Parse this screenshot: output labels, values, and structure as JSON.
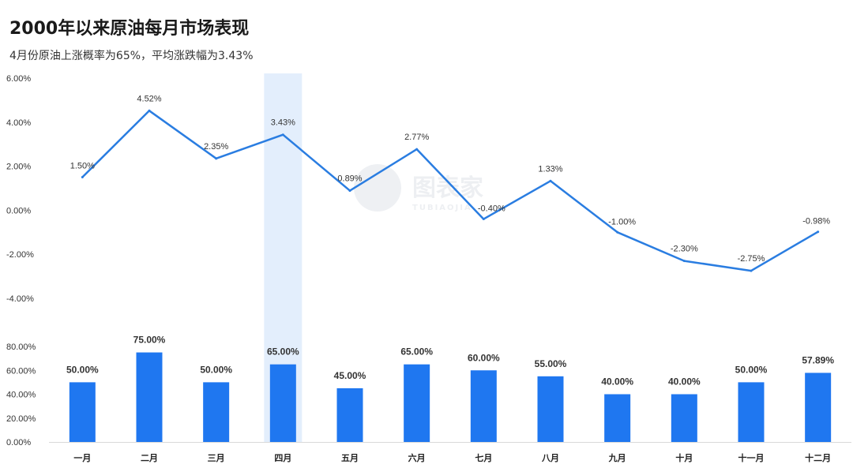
{
  "title": "2000年以来原油每月市场表现",
  "subtitle": "4月份原油上涨概率为65%，平均涨跌幅为3.43%",
  "watermark": {
    "name": "图表家",
    "sub": "TUBIAOJIA"
  },
  "colors": {
    "line": "#2a7de1",
    "bar": "#1f77f0",
    "highlight": "#e3eefc",
    "baseline": "#d9d9d9"
  },
  "highlight_category": "四月",
  "chart_data": [
    {
      "type": "line",
      "categories": [
        "一月",
        "二月",
        "三月",
        "四月",
        "五月",
        "六月",
        "七月",
        "八月",
        "九月",
        "十月",
        "十一月",
        "十二月"
      ],
      "values": [
        1.5,
        4.52,
        2.35,
        3.43,
        0.89,
        2.77,
        -0.4,
        1.33,
        -1.0,
        -2.3,
        -2.75,
        -0.98
      ],
      "value_labels": [
        "1.50%",
        "4.52%",
        "2.35%",
        "3.43%",
        "0.89%",
        "2.77%",
        "-0.40%",
        "1.33%",
        "-1.00%",
        "-2.30%",
        "-2.75%",
        "-0.98%"
      ],
      "ylim": [
        -4,
        6
      ],
      "yticks": [
        -4,
        -2,
        0,
        2,
        4,
        6
      ],
      "ytick_labels": [
        "-4.00%",
        "-2.00%",
        "0.00%",
        "2.00%",
        "4.00%",
        "6.00%"
      ],
      "grid": false
    },
    {
      "type": "bar",
      "categories": [
        "一月",
        "二月",
        "三月",
        "四月",
        "五月",
        "六月",
        "七月",
        "八月",
        "九月",
        "十月",
        "十一月",
        "十二月"
      ],
      "values": [
        50.0,
        75.0,
        50.0,
        65.0,
        45.0,
        65.0,
        60.0,
        55.0,
        40.0,
        40.0,
        50.0,
        57.89
      ],
      "value_labels": [
        "50.00%",
        "75.00%",
        "50.00%",
        "65.00%",
        "45.00%",
        "65.00%",
        "60.00%",
        "55.00%",
        "40.00%",
        "40.00%",
        "50.00%",
        "57.89%"
      ],
      "ylim": [
        0,
        80
      ],
      "yticks": [
        0,
        20,
        40,
        60,
        80
      ],
      "ytick_labels": [
        "0.00%",
        "20.00%",
        "40.00%",
        "60.00%",
        "80.00%"
      ],
      "grid": false
    }
  ]
}
